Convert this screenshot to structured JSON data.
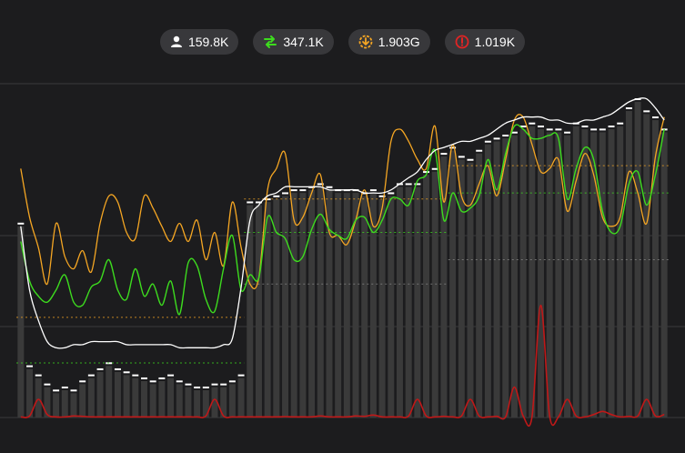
{
  "stats": [
    {
      "icon": "user-icon",
      "value": "159.8K",
      "color": "#ffffff"
    },
    {
      "icon": "transfer-arrows-icon",
      "value": "347.1K",
      "color": "#3ddc1e"
    },
    {
      "icon": "download-circle-icon",
      "value": "1.903G",
      "color": "#f5a623"
    },
    {
      "icon": "alert-circle-icon",
      "value": "1.019K",
      "color": "#e02424"
    }
  ],
  "chart_data": {
    "type": "bar",
    "title": "",
    "xlabel": "",
    "ylabel": "",
    "grid": true,
    "colors": {
      "bar": "#3a3a3a",
      "bar_cap": "#ffffff",
      "users_line": "#ffffff",
      "transfers_line": "#3ddc1e",
      "downloads_line": "#f5a623",
      "errors_line": "#c01818",
      "grid": "#3a3a3c"
    },
    "ylim": [
      0,
      11
    ],
    "bars": [
      6.3,
      1.6,
      1.3,
      1.0,
      0.8,
      0.9,
      0.8,
      1.1,
      1.3,
      1.5,
      1.7,
      1.5,
      1.4,
      1.3,
      1.2,
      1.1,
      1.2,
      1.3,
      1.1,
      1.0,
      0.9,
      0.9,
      1.0,
      1.0,
      1.1,
      1.3,
      7.0,
      7.0,
      7.1,
      7.2,
      7.3,
      7.4,
      7.4,
      7.5,
      7.6,
      7.5,
      7.4,
      7.4,
      7.4,
      7.3,
      7.4,
      7.2,
      7.3,
      7.6,
      7.6,
      7.6,
      8.0,
      8.1,
      8.6,
      8.8,
      8.5,
      8.4,
      8.7,
      9.0,
      9.1,
      9.2,
      9.3,
      9.5,
      9.6,
      9.5,
      9.4,
      9.4,
      9.3,
      9.6,
      9.5,
      9.4,
      9.4,
      9.5,
      9.6,
      10.1,
      10.4,
      10.0,
      9.8,
      9.4
    ],
    "series": [
      {
        "name": "",
        "key": "users",
        "values": [
          6.3,
          4.2,
          3.2,
          2.5,
          2.3,
          2.3,
          2.4,
          2.4,
          2.5,
          2.5,
          2.5,
          2.5,
          2.4,
          2.4,
          2.4,
          2.4,
          2.4,
          2.4,
          2.3,
          2.3,
          2.3,
          2.3,
          2.3,
          2.4,
          2.6,
          4.3,
          6.5,
          7.0,
          7.3,
          7.4,
          7.6,
          7.6,
          7.6,
          7.6,
          7.6,
          7.5,
          7.5,
          7.5,
          7.5,
          7.4,
          7.4,
          7.4,
          7.5,
          7.7,
          7.9,
          8.1,
          8.5,
          8.8,
          8.9,
          9.0,
          9.1,
          9.1,
          9.2,
          9.3,
          9.5,
          9.7,
          9.8,
          9.9,
          9.9,
          9.9,
          9.8,
          9.8,
          9.7,
          9.7,
          9.8,
          9.8,
          9.9,
          10.0,
          10.2,
          10.4,
          10.5,
          10.5,
          10.2,
          9.8
        ]
      },
      {
        "name": "",
        "key": "transfers",
        "values": [
          5.8,
          4.5,
          4.0,
          3.8,
          4.2,
          4.7,
          3.8,
          3.7,
          4.3,
          4.5,
          5.2,
          4.2,
          3.9,
          4.9,
          4.0,
          4.4,
          3.7,
          4.5,
          3.4,
          5.1,
          5.0,
          3.9,
          3.5,
          4.9,
          6.0,
          4.2,
          4.7,
          4.6,
          6.6,
          6.1,
          5.9,
          5.2,
          5.3,
          6.2,
          6.7,
          6.2,
          6.0,
          5.9,
          6.5,
          6.6,
          6.1,
          6.5,
          7.2,
          7.2,
          7.0,
          7.8,
          8.0,
          8.8,
          6.5,
          7.4,
          6.8,
          6.9,
          7.3,
          8.5,
          7.5,
          8.7,
          9.6,
          9.5,
          9.2,
          9.2,
          9.3,
          9.2,
          7.2,
          8.2,
          8.9,
          8.5,
          6.8,
          6.1,
          6.3,
          7.7,
          8.1,
          7.0,
          8.0,
          9.5
        ]
      },
      {
        "name": "",
        "key": "downloads",
        "values": [
          8.2,
          6.6,
          5.6,
          4.4,
          6.4,
          5.3,
          4.9,
          5.5,
          4.8,
          6.4,
          7.3,
          7.1,
          6.1,
          5.9,
          7.3,
          6.9,
          6.3,
          5.8,
          6.4,
          5.8,
          6.5,
          5.2,
          6.1,
          5.0,
          7.1,
          5.6,
          4.4,
          4.6,
          7.5,
          8.2,
          8.7,
          6.5,
          6.6,
          7.4,
          8.0,
          6.1,
          6.0,
          5.7,
          6.5,
          7.5,
          6.3,
          6.9,
          9.1,
          9.5,
          9.1,
          8.5,
          8.2,
          9.6,
          7.1,
          9.0,
          7.3,
          7.0,
          7.7,
          8.3,
          7.3,
          8.5,
          9.8,
          9.9,
          9.0,
          8.1,
          8.2,
          8.5,
          6.8,
          7.8,
          8.7,
          8.0,
          6.6,
          6.3,
          6.6,
          8.1,
          7.4,
          6.4,
          8.6,
          9.9
        ]
      },
      {
        "name": "",
        "key": "errors",
        "values": [
          0.02,
          0.05,
          0.6,
          0.1,
          0.02,
          0.02,
          0.05,
          0.04,
          0.02,
          0.02,
          0.02,
          0.02,
          0.02,
          0.02,
          0.02,
          0.02,
          0.02,
          0.02,
          0.02,
          0.02,
          0.02,
          0.05,
          0.6,
          0.05,
          0.02,
          0.02,
          0.02,
          0.02,
          0.02,
          0.02,
          0.03,
          0.02,
          0.02,
          0.02,
          0.05,
          0.02,
          0.02,
          0.02,
          0.05,
          0.04,
          0.08,
          0.02,
          0.02,
          0.02,
          0.05,
          0.6,
          0.05,
          0.02,
          0.04,
          0.02,
          0.05,
          0.6,
          0.05,
          0.02,
          0.04,
          0.02,
          1.0,
          0.05,
          0.02,
          3.7,
          0.05,
          0.02,
          0.6,
          0.05,
          0.02,
          0.1,
          0.2,
          0.1,
          0.02,
          0.04,
          0.05,
          0.6,
          0.05,
          0.1
        ]
      }
    ],
    "guides": [
      {
        "x0": 0,
        "x1": 26,
        "value": 3.3,
        "color": "#f5a623"
      },
      {
        "x0": 0,
        "x1": 26,
        "value": 1.8,
        "color": "#3ddc1e"
      },
      {
        "x0": 26,
        "x1": 74,
        "value": 7.2,
        "color": "#f5a623"
      },
      {
        "x0": 26,
        "x1": 74,
        "value": 6.1,
        "color": "#3ddc1e"
      },
      {
        "x0": 26,
        "x1": 74,
        "value": 4.4,
        "color": "#888888"
      },
      {
        "x0": 74,
        "x1": 108,
        "value": 8.3,
        "color": "#f5a623"
      },
      {
        "x0": 74,
        "x1": 108,
        "value": 7.4,
        "color": "#3ddc1e"
      },
      {
        "x0": 74,
        "x1": 108,
        "value": 5.2,
        "color": "#888888"
      }
    ]
  }
}
